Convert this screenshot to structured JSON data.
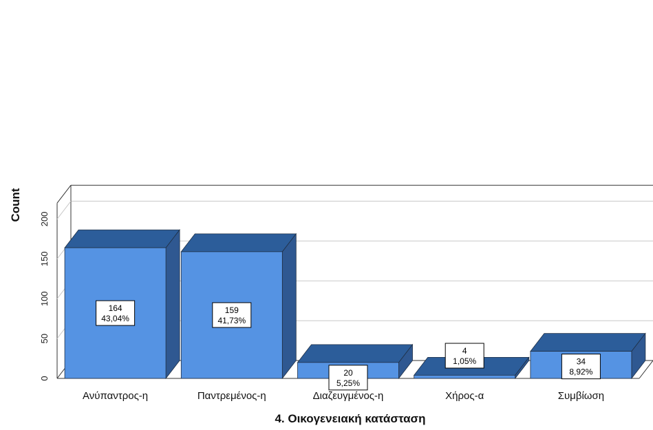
{
  "chart_data": {
    "type": "bar",
    "style": "3d",
    "categories": [
      "Ανύπαντρος-η",
      "Παντρεμένος-η",
      "Διαζευγμένος-η",
      "Χήρος-α",
      "Συμβίωση"
    ],
    "values": [
      164,
      159,
      20,
      4,
      34
    ],
    "value_labels": [
      "164",
      "159",
      "20",
      "4",
      "34"
    ],
    "percent_labels": [
      "43,04%",
      "41,73%",
      "5,25%",
      "1,05%",
      "8,92%"
    ],
    "xlabel": "4. Οικογενειακή κατάσταση",
    "ylabel": "Count",
    "yticks": [
      "0",
      "50",
      "100",
      "150",
      "200"
    ],
    "ylim": [
      0,
      220
    ],
    "grid": true,
    "colors": {
      "bar_front": "#5593e3",
      "bar_top": "#2c5d9a",
      "bar_side": "#2f5891",
      "bar_edge": "#1f2f44",
      "gridline": "#c8c8c8",
      "frame": "#333333"
    }
  }
}
